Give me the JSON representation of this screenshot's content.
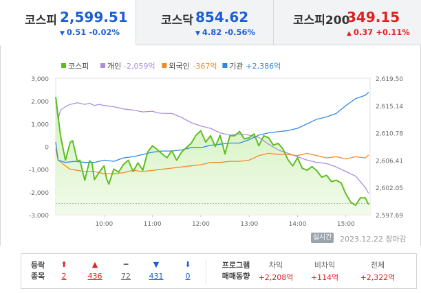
{
  "tabs": [
    {
      "name": "코스피",
      "value": "2,599.51",
      "arrow": "▼",
      "change": "0.51",
      "change_pct": "-0.02%",
      "dir": "down",
      "active": true
    },
    {
      "name": "코스닥",
      "value": "854.62",
      "arrow": "▼",
      "change": "4.82",
      "change_pct": "-0.56%",
      "dir": "down",
      "active": false
    },
    {
      "name": "코스피200",
      "value": "349.15",
      "arrow": "▲",
      "change": "0.37",
      "change_pct": "+0.11%",
      "dir": "up",
      "active": false
    }
  ],
  "colors": {
    "up": "#e02020",
    "down": "#1a5fd4",
    "kospi": "#5cbf1f",
    "individual": "#a98ee0",
    "foreign": "#f08a2a",
    "institution": "#2f8ae0"
  },
  "chart_data": {
    "type": "line",
    "legend": [
      {
        "name": "코스피",
        "value": "",
        "color": "#5cbf1f"
      },
      {
        "name": "개인",
        "value": "-2,059억",
        "color": "#a98ee0"
      },
      {
        "name": "외국인",
        "value": "-367억",
        "color": "#f08a2a"
      },
      {
        "name": "기관",
        "value": "+2,386억",
        "color": "#2f8ae0"
      }
    ],
    "x_ticks": [
      10,
      11,
      12,
      13,
      14,
      15
    ],
    "x_tick_labels": [
      "10:00",
      "11:00",
      "12:00",
      "13:00",
      "14:00",
      "15:00"
    ],
    "xlim": [
      9,
      15.5
    ],
    "y_left_ticks": [
      3000,
      2000,
      1000,
      0,
      -1000,
      -2000,
      -3000
    ],
    "y_left_tick_labels": [
      "3,000",
      "2,000",
      "1,000",
      "0",
      "-1,000",
      "-2,000",
      "-3,000"
    ],
    "ylim_left": [
      -3000,
      3000
    ],
    "y_right_ticks": [
      2619.5,
      2615.14,
      2610.78,
      2606.41,
      2602.05,
      2597.69
    ],
    "y_right_tick_labels": [
      "2,619.50",
      "2,615.14",
      "2,610.78",
      "2,606.41",
      "2,602.05",
      "2,597.69"
    ],
    "ylim_right": [
      2597.69,
      2619.5
    ],
    "baseline_right": 2599.51,
    "series": [
      {
        "name": "코스피",
        "axis": "right",
        "area": true,
        "color": "#5cbf1f",
        "x": [
          9.0,
          9.1,
          9.2,
          9.3,
          9.35,
          9.45,
          9.5,
          9.6,
          9.7,
          9.75,
          9.8,
          9.9,
          10.0,
          10.05,
          10.1,
          10.2,
          10.3,
          10.4,
          10.5,
          10.6,
          10.7,
          10.8,
          10.9,
          11.0,
          11.1,
          11.2,
          11.3,
          11.4,
          11.5,
          11.6,
          11.7,
          11.8,
          11.9,
          12.0,
          12.1,
          12.2,
          12.3,
          12.4,
          12.5,
          12.6,
          12.7,
          12.8,
          12.9,
          13.0,
          13.1,
          13.2,
          13.3,
          13.4,
          13.5,
          13.6,
          13.7,
          13.8,
          13.9,
          14.0,
          14.1,
          14.2,
          14.3,
          14.4,
          14.5,
          14.6,
          14.7,
          14.8,
          14.9,
          15.0,
          15.1,
          15.2,
          15.3,
          15.4,
          15.47
        ],
        "y": [
          2616.5,
          2610.3,
          2606.4,
          2609.3,
          2609.5,
          2606.2,
          2606.4,
          2603.2,
          2606.3,
          2606.0,
          2603.3,
          2604.5,
          2605.5,
          2603.5,
          2602.6,
          2605.0,
          2604.5,
          2605.7,
          2606.4,
          2604.6,
          2606.0,
          2604.8,
          2607.7,
          2608.7,
          2608.1,
          2607.4,
          2606.8,
          2607.9,
          2606.4,
          2607.7,
          2608.4,
          2609.1,
          2610.4,
          2611.1,
          2609.3,
          2610.3,
          2608.6,
          2610.4,
          2607.4,
          2610.3,
          2610.3,
          2611.0,
          2609.8,
          2610.0,
          2610.6,
          2608.7,
          2610.3,
          2610.0,
          2608.8,
          2609.1,
          2608.2,
          2606.5,
          2605.5,
          2606.8,
          2605.1,
          2604.8,
          2605.4,
          2604.7,
          2603.7,
          2604.0,
          2603.0,
          2603.2,
          2602.8,
          2601.0,
          2599.7,
          2599.2,
          2600.4,
          2600.4,
          2599.3
        ]
      },
      {
        "name": "개인",
        "axis": "left",
        "area": false,
        "color": "#a98ee0",
        "x": [
          9.0,
          9.05,
          9.1,
          9.2,
          9.3,
          9.45,
          9.6,
          9.7,
          9.8,
          9.9,
          10.0,
          10.2,
          10.4,
          10.6,
          10.8,
          11.0,
          11.1,
          11.2,
          11.4,
          11.6,
          11.8,
          12.0,
          12.2,
          12.4,
          12.6,
          12.8,
          13.0,
          13.2,
          13.4,
          13.6,
          13.8,
          14.0,
          14.2,
          14.4,
          14.6,
          14.8,
          15.0,
          15.2,
          15.4,
          15.47
        ],
        "y": [
          2000,
          1200,
          1600,
          1750,
          1850,
          1920,
          1850,
          1900,
          1800,
          1850,
          1800,
          1750,
          1650,
          1600,
          1520,
          1550,
          1480,
          1460,
          1450,
          1280,
          1050,
          900,
          800,
          600,
          500,
          550,
          500,
          400,
          100,
          -150,
          -300,
          -450,
          -600,
          -700,
          -750,
          -900,
          -1100,
          -1300,
          -1800,
          -2059
        ]
      },
      {
        "name": "외국인",
        "axis": "left",
        "area": false,
        "color": "#f08a2a",
        "x": [
          9.0,
          9.05,
          9.2,
          9.3,
          9.45,
          9.6,
          9.8,
          10.0,
          10.2,
          10.4,
          10.6,
          10.8,
          11.0,
          11.2,
          11.4,
          11.6,
          11.8,
          12.0,
          12.2,
          12.4,
          12.6,
          12.8,
          13.0,
          13.2,
          13.4,
          13.6,
          13.8,
          14.0,
          14.2,
          14.4,
          14.6,
          14.8,
          15.0,
          15.2,
          15.4,
          15.47
        ],
        "y": [
          -100,
          -600,
          -850,
          -1000,
          -1050,
          -1100,
          -1100,
          -1200,
          -1200,
          -1150,
          -1050,
          -1100,
          -1050,
          -1000,
          -950,
          -900,
          -850,
          -800,
          -700,
          -700,
          -650,
          -650,
          -600,
          -400,
          -300,
          -350,
          -350,
          -400,
          -300,
          -400,
          -500,
          -450,
          -550,
          -450,
          -500,
          -367
        ]
      },
      {
        "name": "기관",
        "axis": "left",
        "area": false,
        "color": "#2f8ae0",
        "x": [
          9.0,
          9.05,
          9.2,
          9.4,
          9.6,
          9.8,
          10.0,
          10.2,
          10.4,
          10.6,
          10.8,
          11.0,
          11.2,
          11.4,
          11.6,
          11.8,
          12.0,
          12.2,
          12.4,
          12.6,
          12.8,
          13.0,
          13.2,
          13.4,
          13.6,
          13.8,
          14.0,
          14.2,
          14.4,
          14.6,
          14.8,
          15.0,
          15.2,
          15.4,
          15.47
        ],
        "y": [
          200,
          -600,
          -700,
          -650,
          -700,
          -700,
          -600,
          -650,
          -500,
          -450,
          -350,
          -250,
          -200,
          -200,
          -150,
          -50,
          -50,
          50,
          100,
          150,
          150,
          300,
          500,
          600,
          650,
          700,
          800,
          1000,
          1200,
          1300,
          1450,
          1800,
          2100,
          2250,
          2386
        ]
      }
    ]
  },
  "footer": {
    "live_label": "실시간",
    "date_text": "2023.12.22 장마감"
  },
  "breadth": {
    "title_line1": "등락",
    "title_line2": "종목",
    "items": [
      {
        "icon": "⬆",
        "value": "2",
        "color": "#e02020",
        "name": "upper-limit"
      },
      {
        "icon": "▲",
        "value": "436",
        "color": "#e02020",
        "name": "rising"
      },
      {
        "icon": "━",
        "value": "72",
        "color": "#666666",
        "name": "unchanged"
      },
      {
        "icon": "▼",
        "value": "431",
        "color": "#1a5fd4",
        "name": "falling"
      },
      {
        "icon": "⬇",
        "value": "0",
        "color": "#1a5fd4",
        "name": "lower-limit"
      }
    ]
  },
  "program": {
    "title_line1": "프로그램",
    "title_line2": "매매동향",
    "cols": [
      {
        "label": "차익",
        "value": "+2,208억"
      },
      {
        "label": "비차익",
        "value": "+114억"
      },
      {
        "label": "전체",
        "value": "+2,322억"
      }
    ]
  }
}
